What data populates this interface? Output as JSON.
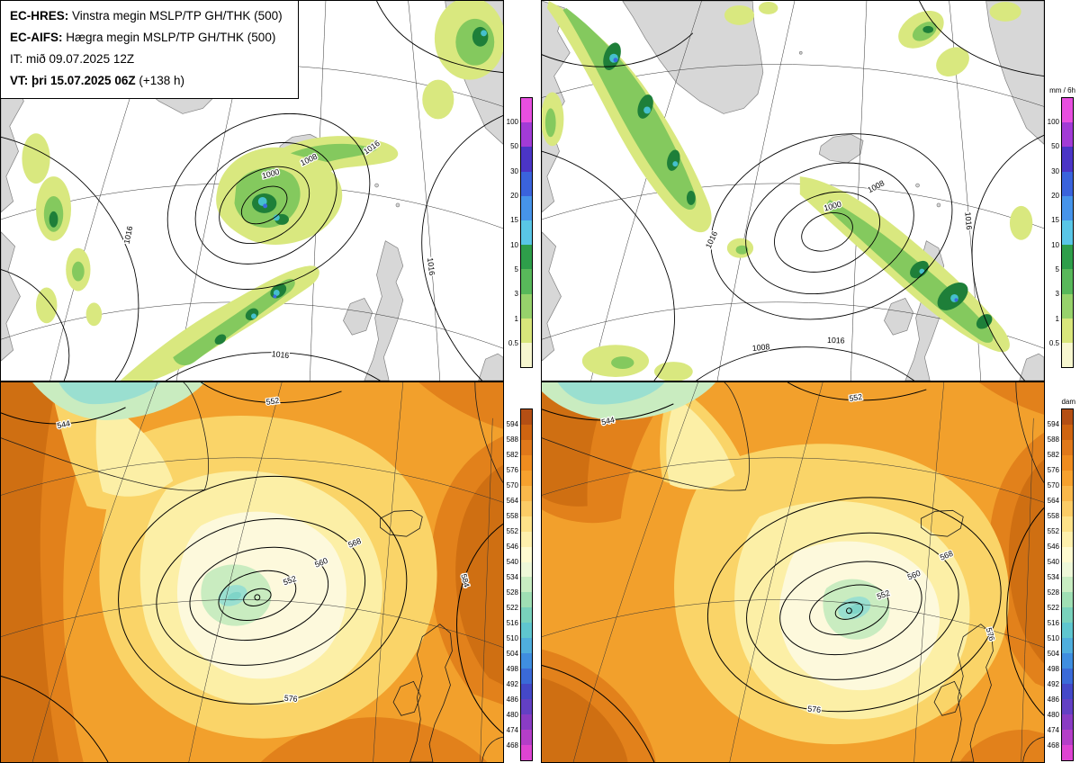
{
  "info_box": {
    "line1": {
      "bold": "EC-HRES:",
      "rest": " Vinstra megin MSLP/TP GH/THK (500)"
    },
    "line2": {
      "bold": "EC-AIFS:",
      "rest": " Hægra megin MSLP/TP GH/THK (500)"
    },
    "line3": {
      "bold": "",
      "rest": "IT: mið 09.07.2025 12Z"
    },
    "line4": {
      "bold": "VT: þri 15.07.2025 06Z",
      "rest": " (+138 h)"
    }
  },
  "colorbars": {
    "precip": {
      "unit": "mm / 6h",
      "labels": [
        "100",
        "50",
        "30",
        "20",
        "15",
        "10",
        "5",
        "3",
        "1",
        "0.5"
      ],
      "colors": [
        "#e84fe0",
        "#a23bd6",
        "#4b35c6",
        "#3a63dc",
        "#4694ea",
        "#59c6e6",
        "#2e9e4a",
        "#58b85a",
        "#97d26b",
        "#d8e67b",
        "#f7f7cf"
      ]
    },
    "thickness": {
      "unit": "dam",
      "labels": [
        "594",
        "588",
        "582",
        "576",
        "570",
        "564",
        "558",
        "552",
        "546",
        "540",
        "534",
        "528",
        "522",
        "516",
        "510",
        "504",
        "498",
        "492",
        "486",
        "480",
        "474",
        "468"
      ],
      "colors": [
        "#b44f14",
        "#cf6410",
        "#e0781a",
        "#ef8c1f",
        "#f6a12e",
        "#f9b84b",
        "#fbcc66",
        "#fde289",
        "#fef0ac",
        "#fffbd0",
        "#eef8d8",
        "#c8edc2",
        "#9fdfb4",
        "#79d2bc",
        "#5fc6cf",
        "#4faedd",
        "#3f8ee0",
        "#3a6ad8",
        "#4448c8",
        "#6340c4",
        "#8a3cc4",
        "#b43ec8",
        "#de44d2"
      ]
    }
  },
  "contour_labels": {
    "tl": [
      "1000",
      "1008",
      "1016",
      "1016",
      "1016",
      "1016"
    ],
    "tr": [
      "1000",
      "1008",
      "1016",
      "1016",
      "1008",
      "1016"
    ],
    "bl": [
      "552",
      "560",
      "568",
      "576",
      "552",
      "544",
      "584"
    ],
    "br": [
      "552",
      "560",
      "568",
      "576",
      "552",
      "544",
      "576"
    ]
  },
  "palette": {
    "ocean": "#ffffff",
    "land": "#d7d7d7",
    "precip_light": "#d9e87f",
    "precip_green": "#84c95e",
    "precip_dark_green": "#1e7f39",
    "precip_cyan": "#45c0cd",
    "precip_blue": "#3a6ce0",
    "thk_base_orange": "#f2a02c",
    "thk_dark_orange": "#e2811b",
    "thk_deep_orange": "#cf6f12",
    "thk_yellow": "#fad468",
    "thk_pale_yellow": "#fcefa6",
    "thk_cream": "#fdf9dc",
    "thk_pale_green": "#c9ecc0",
    "thk_cyan": "#9adfd0",
    "thk_deep_cyan": "#7fd4c8"
  }
}
